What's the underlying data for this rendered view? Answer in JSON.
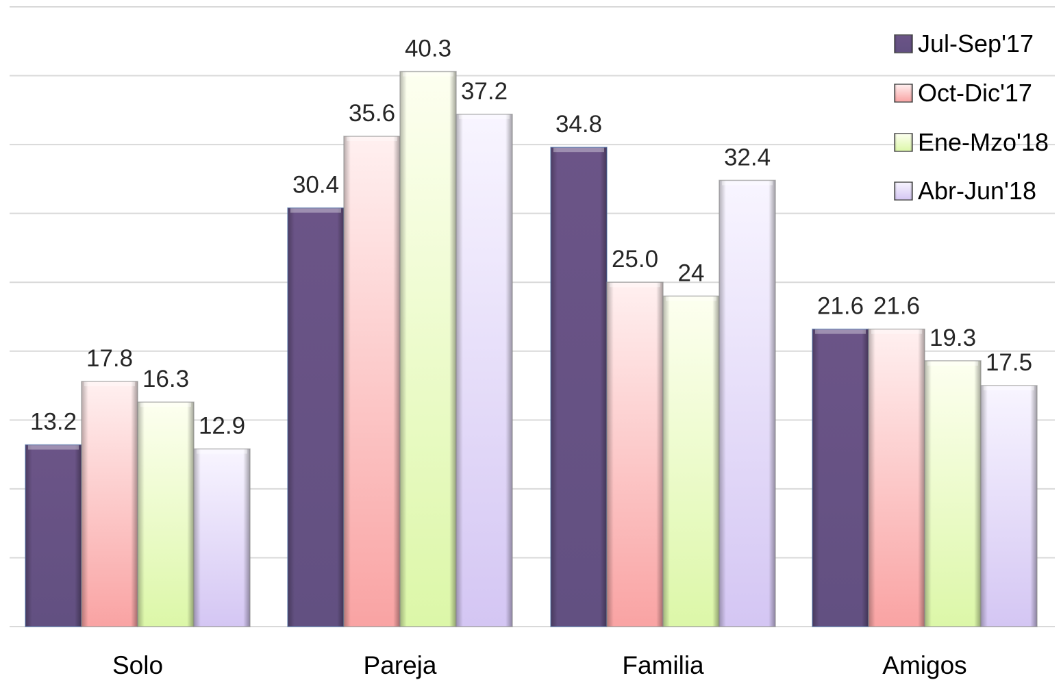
{
  "chart_data": {
    "type": "bar",
    "title": "",
    "xlabel": "",
    "ylabel": "",
    "ylim": [
      0,
      45
    ],
    "grid": true,
    "legend_position": "top-right",
    "categories": [
      "Solo",
      "Pareja",
      "Familia",
      "Amigos"
    ],
    "series": [
      {
        "name": "Jul-Sep'17",
        "color": "#6a5384",
        "values": [
          13.2,
          30.4,
          34.8,
          21.6
        ],
        "labels": [
          "13.2",
          "30.4",
          "34.8",
          "21.6"
        ]
      },
      {
        "name": "Oct-Dic'17",
        "color": "#f7a6a6",
        "values": [
          17.8,
          35.6,
          25.0,
          21.6
        ],
        "labels": [
          "17.8",
          "35.6",
          "25.0",
          "21.6"
        ]
      },
      {
        "name": "Ene-Mzo'18",
        "color": "#e3f7b8",
        "values": [
          16.3,
          40.3,
          24,
          19.3
        ],
        "labels": [
          "16.3",
          "40.3",
          "24",
          "19.3"
        ]
      },
      {
        "name": "Abr-Jun'18",
        "color": "#d8cdf2",
        "values": [
          12.9,
          37.2,
          32.4,
          17.5
        ],
        "labels": [
          "12.9",
          "37.2",
          "32.4",
          "17.5"
        ]
      }
    ]
  }
}
